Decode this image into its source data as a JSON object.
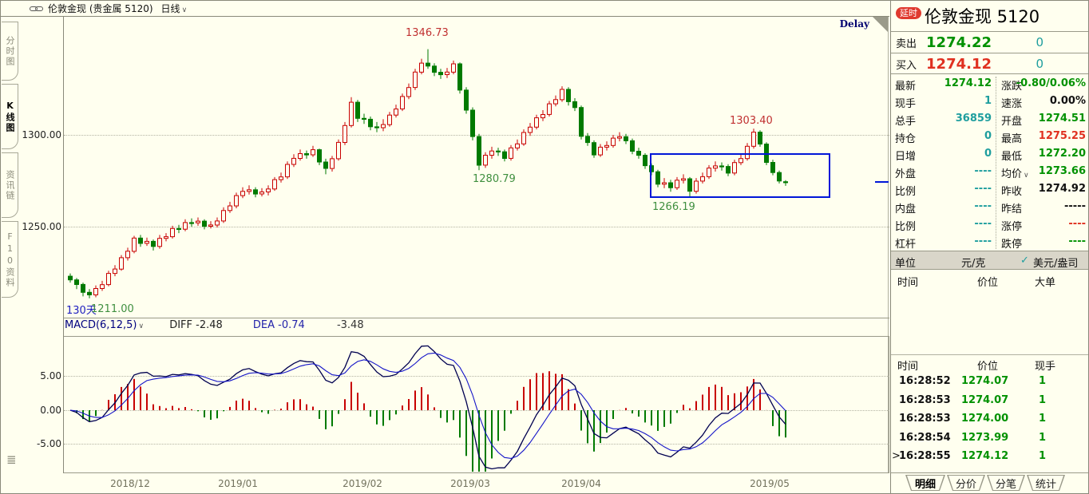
{
  "header": {
    "title": "伦敦金现 (贵金属 5120)",
    "period": "日线",
    "dropdown_arrow": "∨",
    "delay_corner_label": "Delay"
  },
  "left_tabs": {
    "items": [
      "分时图",
      "K线图",
      "资讯链",
      "F10资料"
    ],
    "active": "K线图"
  },
  "macd_header": {
    "label": "MACD(6,12,5)",
    "arrow": "∨",
    "diff": "DIFF -2.48",
    "dea": "DEA -0.74",
    "macd_value": "-3.48"
  },
  "chart_data": {
    "type": "candlestick",
    "title": "伦敦金现 5120 日线",
    "x_labels": [
      "2018/12",
      "2019/01",
      "2019/02",
      "2019/03",
      "2019/04",
      "2019/05"
    ],
    "price_axis_labels": [
      "1300.00",
      "1250.00"
    ],
    "price_gridlines": [
      1300,
      1250
    ],
    "macd_axis_labels": [
      "5.00",
      "0.00",
      "-5.00"
    ],
    "macd_gridlines": [
      5,
      0,
      -5
    ],
    "annotations": {
      "period_high": "1346.73",
      "pullback_low": "1280.79",
      "box_high": "1303.40",
      "box_low": "1266.19",
      "lookback": "130天",
      "period_low": "1211.00"
    },
    "colors": {
      "up": "#c80000",
      "down": "#007a00",
      "box": "#0016d8"
    },
    "macd_params": [
      6,
      12,
      5
    ],
    "candles": [
      [
        1223,
        1224.5,
        1219.5,
        1221
      ],
      [
        1221,
        1222,
        1216,
        1218.5
      ],
      [
        1218.5,
        1219.5,
        1212,
        1214.2
      ],
      [
        1214.2,
        1216,
        1211,
        1212.8
      ],
      [
        1212.8,
        1218,
        1211.5,
        1216.3
      ],
      [
        1216.3,
        1220.5,
        1215,
        1218.4
      ],
      [
        1218.4,
        1226,
        1217.5,
        1224.5
      ],
      [
        1224.5,
        1229,
        1223,
        1226.9
      ],
      [
        1226.9,
        1234.5,
        1226,
        1233.1
      ],
      [
        1233.1,
        1238.5,
        1231.5,
        1236.6
      ],
      [
        1236.6,
        1245,
        1235.5,
        1243.8
      ],
      [
        1243.8,
        1245.5,
        1239,
        1240.9
      ],
      [
        1240.9,
        1244,
        1239.5,
        1242
      ],
      [
        1242,
        1243,
        1237,
        1239.2
      ],
      [
        1239.2,
        1245.5,
        1238,
        1243.6
      ],
      [
        1243.6,
        1246.5,
        1242,
        1244.5
      ],
      [
        1244.5,
        1250.5,
        1243.5,
        1249
      ],
      [
        1249,
        1251,
        1246.5,
        1248.6
      ],
      [
        1248.6,
        1254,
        1247.5,
        1252.2
      ],
      [
        1252.2,
        1254.5,
        1250,
        1252.1
      ],
      [
        1252.1,
        1255,
        1250.5,
        1253
      ],
      [
        1253,
        1254,
        1248.5,
        1250.2
      ],
      [
        1250.2,
        1253,
        1249,
        1250.9
      ],
      [
        1250.9,
        1255,
        1249.5,
        1253.1
      ],
      [
        1253.1,
        1260.5,
        1252,
        1258.8
      ],
      [
        1258.8,
        1263.5,
        1257.5,
        1261.3
      ],
      [
        1261.3,
        1268.5,
        1260,
        1266.9
      ],
      [
        1266.9,
        1271.5,
        1265.5,
        1269.2
      ],
      [
        1269.2,
        1272.5,
        1267.5,
        1270.1
      ],
      [
        1270.1,
        1271.5,
        1266,
        1267.8
      ],
      [
        1267.8,
        1271,
        1266.5,
        1268.9
      ],
      [
        1268.9,
        1272.5,
        1267,
        1270.5
      ],
      [
        1270.5,
        1277,
        1269.5,
        1275.6
      ],
      [
        1275.6,
        1279.5,
        1274,
        1277.1
      ],
      [
        1277.1,
        1285.5,
        1276,
        1283.9
      ],
      [
        1283.9,
        1289.5,
        1282.5,
        1287.2
      ],
      [
        1287.2,
        1292,
        1286,
        1289.8
      ],
      [
        1289.8,
        1291.5,
        1287,
        1289.1
      ],
      [
        1289.1,
        1294,
        1288,
        1291.9
      ],
      [
        1291.9,
        1292.5,
        1283.5,
        1285.2
      ],
      [
        1285.2,
        1287,
        1278.5,
        1281.7
      ],
      [
        1281.7,
        1288.5,
        1280,
        1287
      ],
      [
        1287,
        1297.5,
        1286,
        1295.9
      ],
      [
        1295.9,
        1307,
        1294.5,
        1305.1
      ],
      [
        1305.1,
        1320.5,
        1304,
        1317.8
      ],
      [
        1317.8,
        1319,
        1307,
        1309
      ],
      [
        1309,
        1311.5,
        1306,
        1308.5
      ],
      [
        1308.5,
        1310,
        1302.5,
        1304.4
      ],
      [
        1304.4,
        1307,
        1301.5,
        1303.9
      ],
      [
        1303.9,
        1308.5,
        1302,
        1305.6
      ],
      [
        1305.6,
        1312.5,
        1304.5,
        1310.8
      ],
      [
        1310.8,
        1316.5,
        1309.5,
        1314.1
      ],
      [
        1314.1,
        1322.5,
        1313,
        1320.9
      ],
      [
        1320.9,
        1328,
        1319.5,
        1325.8
      ],
      [
        1325.8,
        1336,
        1324.5,
        1334.2
      ],
      [
        1334.2,
        1341.5,
        1333,
        1339.1
      ],
      [
        1339.1,
        1346.7,
        1336,
        1337.5
      ],
      [
        1337.5,
        1339,
        1332,
        1334.1
      ],
      [
        1334.1,
        1336,
        1330.5,
        1332.8
      ],
      [
        1332.8,
        1336.5,
        1331,
        1334.2
      ],
      [
        1334.2,
        1340.5,
        1333,
        1338.7
      ],
      [
        1338.7,
        1339.5,
        1322.5,
        1324.4
      ],
      [
        1324.4,
        1326,
        1311.5,
        1313.5
      ],
      [
        1313.5,
        1315,
        1297,
        1299.1
      ],
      [
        1299.1,
        1300.5,
        1280.8,
        1283.5
      ],
      [
        1283.5,
        1290.5,
        1282,
        1288.9
      ],
      [
        1288.9,
        1293.5,
        1287,
        1291.2
      ],
      [
        1291.2,
        1293,
        1288.5,
        1290.8
      ],
      [
        1290.8,
        1292,
        1285.5,
        1287.2
      ],
      [
        1287.2,
        1294.5,
        1286,
        1292.9
      ],
      [
        1292.9,
        1297.5,
        1291.5,
        1295.1
      ],
      [
        1295.1,
        1303,
        1294,
        1301.3
      ],
      [
        1301.3,
        1306.5,
        1299.5,
        1304.2
      ],
      [
        1304.2,
        1311,
        1303,
        1309.3
      ],
      [
        1309.3,
        1313.5,
        1307.5,
        1311.1
      ],
      [
        1311.1,
        1318.5,
        1310,
        1316.9
      ],
      [
        1316.9,
        1321.5,
        1315.5,
        1319.2
      ],
      [
        1319.2,
        1326.5,
        1318,
        1324.8
      ],
      [
        1324.8,
        1326,
        1316,
        1318.1
      ],
      [
        1318.1,
        1320,
        1313,
        1314.9
      ],
      [
        1314.9,
        1316,
        1297.5,
        1299.2
      ],
      [
        1299.2,
        1301,
        1294,
        1295.8
      ],
      [
        1295.8,
        1297,
        1287.5,
        1289.1
      ],
      [
        1289.1,
        1295,
        1288,
        1293.3
      ],
      [
        1293.3,
        1296.5,
        1291.5,
        1294.2
      ],
      [
        1294.2,
        1300,
        1293,
        1298.2
      ],
      [
        1298.2,
        1301.5,
        1296.5,
        1299
      ],
      [
        1299,
        1300.5,
        1295,
        1296.8
      ],
      [
        1296.8,
        1298,
        1289.5,
        1291.1
      ],
      [
        1291.1,
        1293,
        1287,
        1288.9
      ],
      [
        1288.9,
        1290,
        1281.5,
        1283.2
      ],
      [
        1283.2,
        1284.5,
        1278,
        1279.9
      ],
      [
        1279.9,
        1281,
        1271.5,
        1273.1
      ],
      [
        1273.1,
        1276.5,
        1271,
        1273.9
      ],
      [
        1273.9,
        1275.5,
        1269,
        1271.2
      ],
      [
        1271.2,
        1277,
        1270,
        1275.3
      ],
      [
        1275.3,
        1278.5,
        1273.5,
        1276.1
      ],
      [
        1276.1,
        1277,
        1266.2,
        1269.3
      ],
      [
        1269.3,
        1276.5,
        1268,
        1274.8
      ],
      [
        1274.8,
        1279.5,
        1273.5,
        1277.2
      ],
      [
        1277.2,
        1283.5,
        1276,
        1281.9
      ],
      [
        1281.9,
        1285.5,
        1280,
        1283.1
      ],
      [
        1283.1,
        1285,
        1280.5,
        1282.8
      ],
      [
        1282.8,
        1284,
        1277.5,
        1279.2
      ],
      [
        1279.2,
        1286.5,
        1278,
        1284.9
      ],
      [
        1284.9,
        1289.5,
        1283.5,
        1287.1
      ],
      [
        1287.1,
        1295.5,
        1286,
        1293.8
      ],
      [
        1293.8,
        1303.4,
        1292.5,
        1301.5
      ],
      [
        1301.5,
        1302.5,
        1293.5,
        1295
      ],
      [
        1295,
        1296,
        1283.5,
        1285
      ],
      [
        1285,
        1286.5,
        1278,
        1279.5
      ],
      [
        1279.5,
        1280.5,
        1273.5,
        1274.9
      ],
      [
        1274.5,
        1275.3,
        1272.2,
        1274.1
      ]
    ]
  },
  "quote_panel": {
    "delay_badge": "延时",
    "title": "伦敦金现  5120",
    "ask": {
      "label": "卖出",
      "price": "1274.22",
      "qty": "0"
    },
    "bid": {
      "label": "买入",
      "price": "1274.12",
      "qty": "0"
    },
    "stats": [
      {
        "l": "最新",
        "lv": "1274.12",
        "lc": "g",
        "r": "涨跌",
        "rv": "-0.80/0.06%",
        "rc": "g"
      },
      {
        "l": "现手",
        "lv": "1",
        "lc": "t",
        "r": "速涨",
        "rv": "0.00%",
        "rc": "k"
      },
      {
        "l": "总手",
        "lv": "36859",
        "lc": "t",
        "r": "开盘",
        "rv": "1274.51",
        "rc": "g"
      },
      {
        "l": "持仓",
        "lv": "0",
        "lc": "t",
        "r": "最高",
        "rv": "1275.25",
        "rc": "r"
      },
      {
        "l": "日增",
        "lv": "0",
        "lc": "t",
        "r": "最低",
        "rv": "1272.20",
        "rc": "g"
      },
      {
        "l": "外盘",
        "lv": "----",
        "lc": "t",
        "r": "均价",
        "rarrow": "∨",
        "rv": "1273.66",
        "rc": "g"
      },
      {
        "l": "比例",
        "lv": "----",
        "lc": "t",
        "r": "昨收",
        "rv": "1274.92",
        "rc": "k"
      },
      {
        "l": "内盘",
        "lv": "----",
        "lc": "t",
        "r": "昨结",
        "rv": "-----",
        "rc": "k"
      },
      {
        "l": "比例",
        "lv": "----",
        "lc": "t",
        "r": "涨停",
        "rv": "----",
        "rc": "r"
      },
      {
        "l": "杠杆",
        "lv": "----",
        "lc": "t",
        "r": "跌停",
        "rv": "----",
        "rc": "g"
      }
    ],
    "unit_row": {
      "label": "单位",
      "option1": "元/克",
      "check": "✓",
      "option2": "美元/盎司"
    },
    "big_order_header": {
      "c1": "时间",
      "c2": "价位",
      "c3": "大单"
    },
    "ticks_header": {
      "c1": "时间",
      "c2": "价位",
      "c3": "现手"
    },
    "ticks": [
      {
        "time": "16:28:52",
        "price": "1274.07",
        "vol": "1",
        "marker": ""
      },
      {
        "time": "16:28:53",
        "price": "1274.07",
        "vol": "1",
        "marker": ""
      },
      {
        "time": "16:28:53",
        "price": "1274.00",
        "vol": "1",
        "marker": ""
      },
      {
        "time": "16:28:54",
        "price": "1273.99",
        "vol": "1",
        "marker": ""
      },
      {
        "time": "16:28:55",
        "price": "1274.12",
        "vol": "1",
        "marker": ">"
      }
    ],
    "bottom_tabs": {
      "items": [
        "明细",
        "分价",
        "分笔",
        "统计"
      ],
      "active": "明细"
    }
  }
}
